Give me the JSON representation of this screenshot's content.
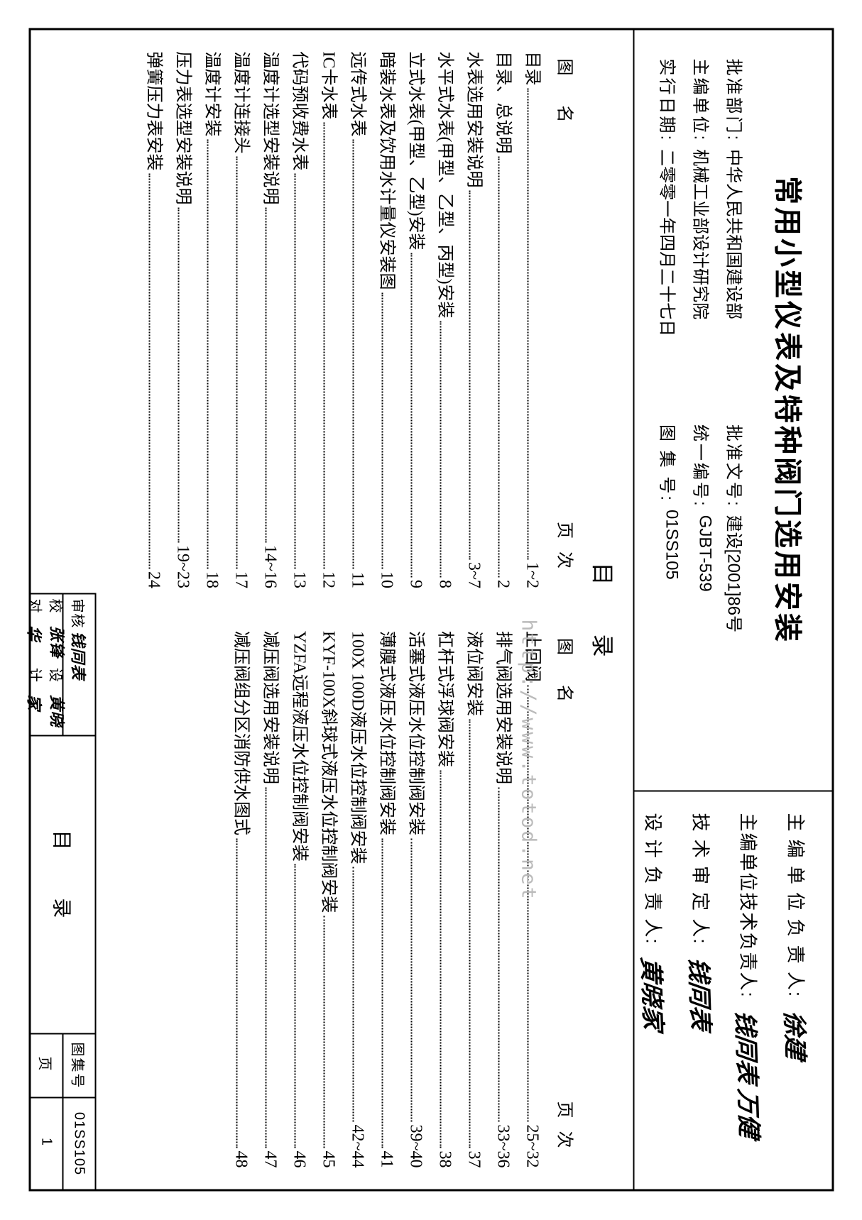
{
  "title": "常用小型仪表及特种阀门选用安装",
  "info": {
    "approve_dept_label": "批准部门:",
    "approve_dept": "中华人民共和国建设部",
    "approve_no_label": "批准文号:",
    "approve_no": "建设[2001]86号",
    "editor_unit_label": "主编单位:",
    "editor_unit": "机械工业部设计研究院",
    "unified_no_label": "统一编号:",
    "unified_no": "GJBT-539",
    "effective_date_label": "实行日期:",
    "effective_date": "二零零一年四月二十七日",
    "atlas_no_label": "图 集 号:",
    "atlas_no": "01SS105"
  },
  "signatures": {
    "head_label": "主 编 单 位 负 责 人:",
    "head_sig": "徐建",
    "tech_label": "主编单位技术负责人:",
    "tech_sig": "钱同表 万健",
    "tech_review_label": "技  术  审  定  人:",
    "tech_review_sig": "钱同表",
    "design_label": "设  计  负  责  人:",
    "design_sig": "黄晓家"
  },
  "toc": {
    "heading": "目 录",
    "col_header_name": "图 名",
    "col_header_page": "页次",
    "left": [
      {
        "t": "目录",
        "p": "1~2"
      },
      {
        "t": "目录、总说明",
        "p": "2"
      },
      {
        "t": "水表选用安装说明",
        "p": "3~7"
      },
      {
        "t": "水平式水表(甲型、乙型、丙型)安装",
        "p": "8"
      },
      {
        "t": "立式水表(甲型、乙型)安装",
        "p": "9"
      },
      {
        "t": "暗装水表及饮用水计量仪安装图",
        "p": "10"
      },
      {
        "t": "远传式水表",
        "p": "11"
      },
      {
        "t": "IC卡水表",
        "p": "12"
      },
      {
        "t": "代码预收费水表",
        "p": "13"
      },
      {
        "t": "温度计选型安装说明",
        "p": "14~16"
      },
      {
        "t": "温度计连接头",
        "p": "17"
      },
      {
        "t": "温度计安装",
        "p": "18"
      },
      {
        "t": "压力表选型安装说明",
        "p": "19~23"
      },
      {
        "t": "弹簧压力表安装",
        "p": "24"
      }
    ],
    "right": [
      {
        "t": "止回阀",
        "p": "25~32"
      },
      {
        "t": "排气阀选用安装说明",
        "p": "33~36"
      },
      {
        "t": "液位阀安装",
        "p": "37"
      },
      {
        "t": "杠杆式浮球阀安装",
        "p": "38"
      },
      {
        "t": "活塞式液压水位控制阀安装",
        "p": "39~40"
      },
      {
        "t": "薄膜式液压水位控制阀安装",
        "p": "41"
      },
      {
        "t": "100X 100D液压水位控制阀安装",
        "p": "42~44"
      },
      {
        "t": "KYF-100X斜球式液压水位控制阀安装",
        "p": "45"
      },
      {
        "t": "YZFA远程液压水位控制阀安装",
        "p": "46"
      },
      {
        "t": "减压阀选用安装说明",
        "p": "47"
      },
      {
        "t": "减压阀组分区消防供水图式",
        "p": "48"
      }
    ]
  },
  "footer": {
    "toc_label": "目  录",
    "atlas_label": "图集号",
    "atlas_value": "01SS105",
    "page_label": "页",
    "page_value": "1",
    "reviewer_label": "审核",
    "reviewer_sig": "钱同表",
    "checker_label": "校对",
    "checker_sig": "张锋华",
    "designer_label": "设计",
    "designer_sig": "黄晓家"
  },
  "watermark": "http://www.totod.net"
}
